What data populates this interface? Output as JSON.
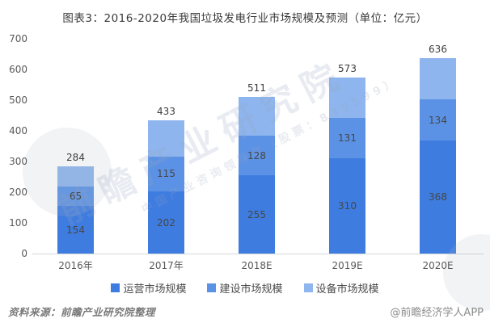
{
  "title": "图表3：2016-2020年我国垃圾发电行业市场规模及预测（单位：亿元）",
  "source_note": "资料来源：前瞻产业研究院整理",
  "credit": "@前瞻经济学人APP",
  "watermark": {
    "main": "前瞻产业研究院",
    "sub": "中国产业咨询领导者（股票：839599）"
  },
  "colors": {
    "series_operation": "#3E7CE0",
    "series_construction": "#5B92E5",
    "series_equipment": "#8FB5EE",
    "axis_text": "#595959",
    "baseline": "#d4d7dc"
  },
  "chart_data": {
    "type": "bar",
    "stacked": true,
    "title": "图表3：2016-2020年我国垃圾发电行业市场规模及预测（单位：亿元）",
    "unit": "亿元",
    "categories": [
      "2016年",
      "2017年",
      "2018E",
      "2019E",
      "2020E"
    ],
    "series": [
      {
        "name": "运营市场规模",
        "color": "#3E7CE0",
        "show_labels": true,
        "values": [
          154,
          202,
          255,
          310,
          368
        ]
      },
      {
        "name": "建设市场规模",
        "color": "#5B92E5",
        "show_labels": true,
        "values": [
          65,
          115,
          128,
          131,
          134
        ]
      },
      {
        "name": "设备市场规模",
        "color": "#8FB5EE",
        "show_labels": false,
        "values": [
          65,
          116,
          128,
          132,
          134
        ]
      }
    ],
    "totals": [
      284,
      433,
      511,
      573,
      636
    ],
    "xlabel": "",
    "ylabel": "",
    "ylim": [
      0,
      700
    ],
    "ytick_step": 100,
    "grid": false,
    "legend_position": "bottom"
  }
}
